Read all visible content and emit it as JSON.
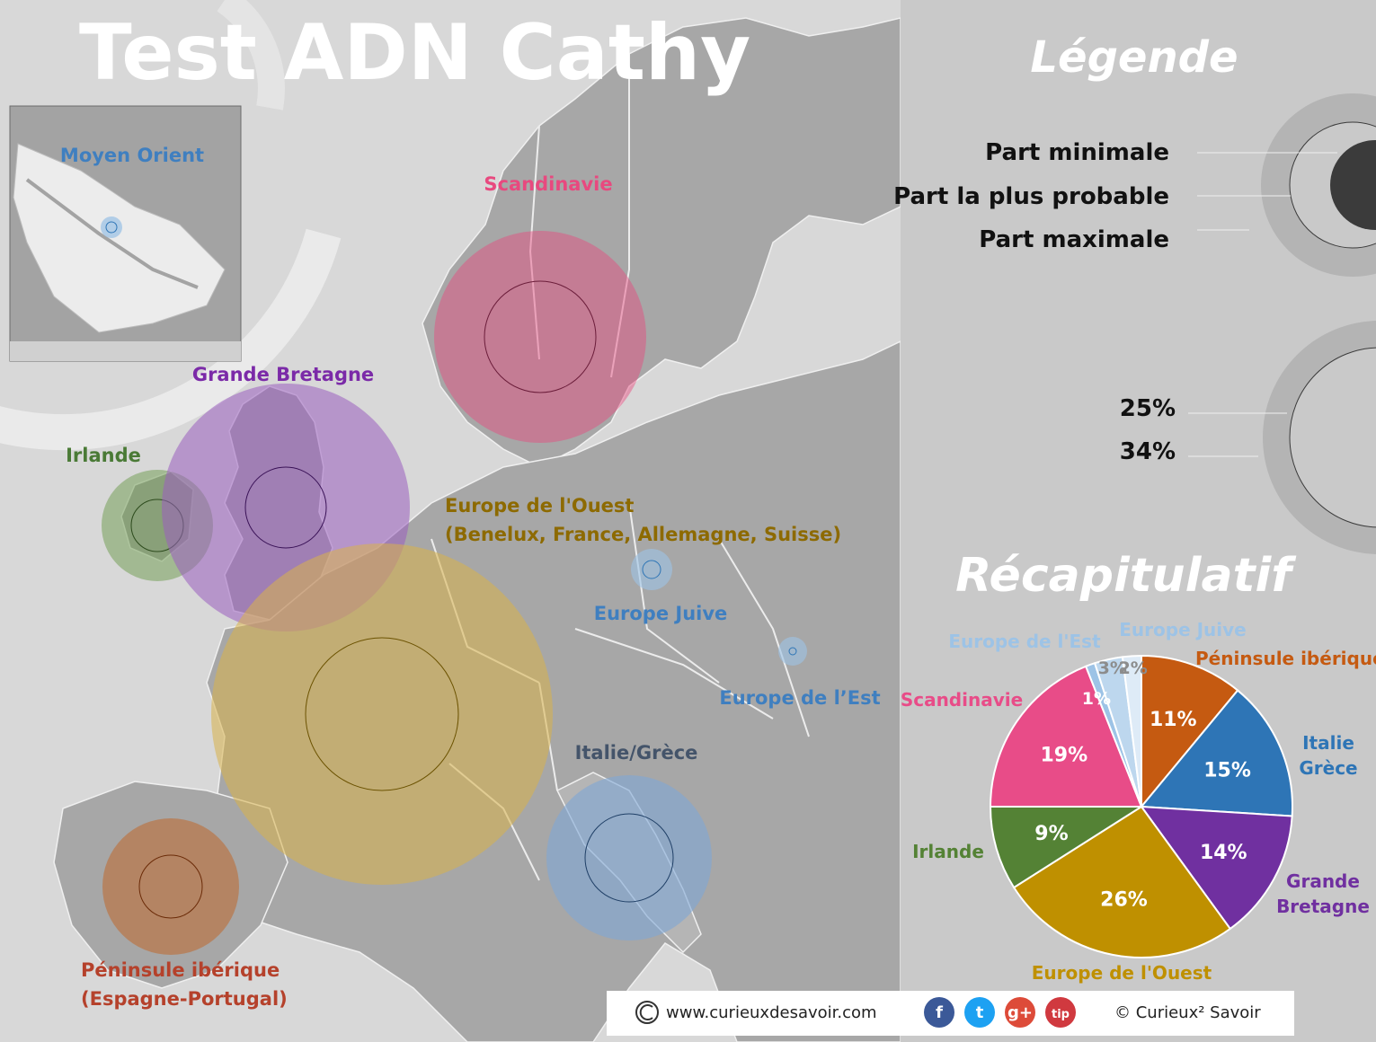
{
  "title": "Test ADN Cathy",
  "inset": {
    "region_label": "Moyen Orient",
    "region_color": "#3f7fc0"
  },
  "map_regions": [
    {
      "label_lines": [
        "Scandinavie"
      ],
      "color": "#e8497f"
    },
    {
      "label_lines": [
        "Grande Bretagne"
      ],
      "color": "#7b2aa8"
    },
    {
      "label_lines": [
        "Irlande"
      ],
      "color": "#4a7a36"
    },
    {
      "label_lines": [
        "Europe de l'Ouest",
        "(Benelux, France, Allemagne, Suisse)"
      ],
      "color": "#8d6a00"
    },
    {
      "label_lines": [
        "Europe Juive"
      ],
      "color": "#3f7fc0"
    },
    {
      "label_lines": [
        "Europe de l’Est"
      ],
      "color": "#3f7fc0"
    },
    {
      "label_lines": [
        "Italie/Grèce"
      ],
      "color": "#44546a"
    },
    {
      "label_lines": [
        "Péninsule ibérique",
        "(Espagne-Portugal)"
      ],
      "color": "#b5412b"
    }
  ],
  "legend": {
    "title": "Légende",
    "items": [
      "Part minimale",
      "Part la plus probable",
      "Part maximale"
    ],
    "scale_items": [
      "25%",
      "34%"
    ]
  },
  "summary": {
    "title": "Récapitulatif"
  },
  "chart_data": {
    "type": "pie",
    "title": "Récapitulatif",
    "slices": [
      {
        "name": "Péninsule ibérique",
        "value": 11,
        "label": "11%",
        "color": "#c55a11"
      },
      {
        "name": "Italie Grèce",
        "value": 15,
        "label": "15%",
        "color": "#2e75b6"
      },
      {
        "name": "Grande Bretagne",
        "value": 14,
        "label": "14%",
        "color": "#7030a0"
      },
      {
        "name": "Europe de l'Ouest",
        "value": 26,
        "label": "26%",
        "color": "#bf9000"
      },
      {
        "name": "Irlande",
        "value": 9,
        "label": "9%",
        "color": "#548235"
      },
      {
        "name": "Scandinavie",
        "value": 19,
        "label": "19%",
        "color": "#e84c88"
      },
      {
        "name": "",
        "value": 1,
        "label": "1%",
        "color": "#9dc3e6"
      },
      {
        "name": "Europe de l'Est",
        "value": 3,
        "label": "3%",
        "color": "#bdd7ee"
      },
      {
        "name": "Europe Juive",
        "value": 2,
        "label": "2%",
        "color": "#deebf7"
      }
    ]
  },
  "footer": {
    "website": "www.curieuxdesavoir.com",
    "copyright": "© Curieux² Savoir",
    "social": [
      {
        "icon": "facebook-icon",
        "glyph": "f",
        "color": "#3b5998"
      },
      {
        "icon": "twitter-icon",
        "glyph": "t",
        "color": "#1da1f2"
      },
      {
        "icon": "google-plus-icon",
        "glyph": "g+",
        "color": "#dd4b39"
      },
      {
        "icon": "tip-icon",
        "glyph": "tip",
        "color": "#d0393f"
      }
    ]
  }
}
